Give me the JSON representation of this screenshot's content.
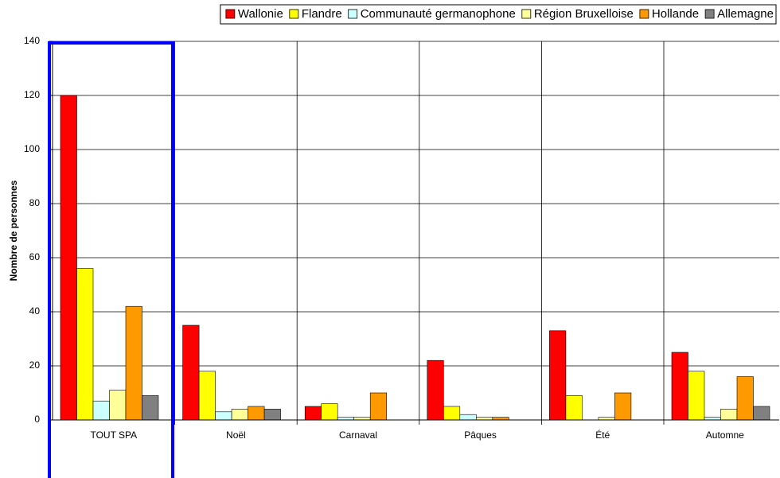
{
  "chart_data": {
    "type": "bar",
    "y_label": "Nombre de personnes",
    "categories": [
      "TOUT SPA",
      "Noël",
      "Carnaval",
      "Pâques",
      "Été",
      "Automne"
    ],
    "series": [
      {
        "name": "Wallonie",
        "color": "#ff0000",
        "values": [
          120,
          35,
          5,
          22,
          33,
          25
        ]
      },
      {
        "name": "Flandre",
        "color": "#ffff00",
        "values": [
          56,
          18,
          6,
          5,
          9,
          18
        ]
      },
      {
        "name": "Communauté germanophone",
        "color": "#ccffff",
        "values": [
          7,
          3,
          1,
          2,
          0,
          1
        ]
      },
      {
        "name": "Région Bruxelloise",
        "color": "#ffff99",
        "values": [
          11,
          4,
          1,
          1,
          1,
          4
        ]
      },
      {
        "name": "Hollande",
        "color": "#ff9900",
        "values": [
          42,
          5,
          10,
          1,
          10,
          16
        ]
      },
      {
        "name": "Allemagne",
        "color": "#808080",
        "values": [
          9,
          4,
          0,
          0,
          0,
          5
        ]
      }
    ],
    "ylim": [
      0,
      140
    ],
    "yticks": [
      0,
      20,
      40,
      60,
      80,
      100,
      120,
      140
    ],
    "grid": true,
    "legend": "top-right"
  }
}
